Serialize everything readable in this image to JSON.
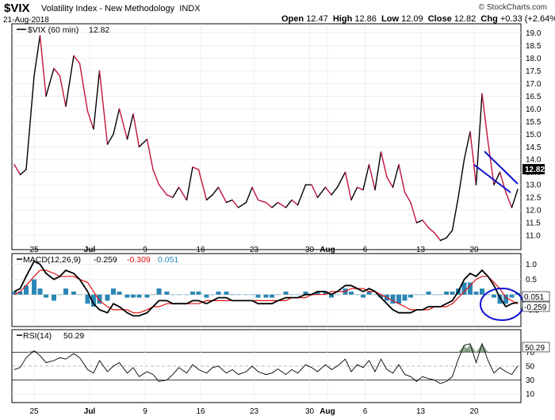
{
  "header": {
    "symbol": "$VIX",
    "name": "Volatility Index - New Methodology",
    "exchange": "INDX",
    "date": "21-Aug-2018",
    "credit": "© StockCharts.com",
    "open_label": "Open",
    "open": "12.47",
    "high_label": "High",
    "high": "12.86",
    "low_label": "Low",
    "low": "12.09",
    "close_label": "Close",
    "close": "12.82",
    "chg_label": "Chg",
    "chg": "+0.33 (+2.64%)"
  },
  "colors": {
    "up": "#000000",
    "down": "#c0143c",
    "macd": "#000000",
    "signal": "#e01010",
    "hist": "#2a86b4",
    "trend": "#1010d0",
    "annot": "#1010d0",
    "rsi": "#000000",
    "overbought": "#6f8f6f"
  },
  "chart_data": [
    {
      "type": "line",
      "title": "$VIX (60 min) 12.82",
      "legend_label": "$VIX (60 min)",
      "legend_value": "12.82",
      "x_ticks": [
        "25",
        "Jul",
        "9",
        "16",
        "23",
        "30",
        "Aug",
        "6",
        "13",
        "20"
      ],
      "y_ticks": [
        "11.0",
        "11.5",
        "12.0",
        "12.5",
        "13.0",
        "13.5",
        "14.0",
        "14.5",
        "15.0",
        "15.5",
        "16.0",
        "16.5",
        "17.0",
        "17.5",
        "18.0",
        "18.5",
        "19.0"
      ],
      "ylim": [
        10.5,
        19.3
      ],
      "last_value_label": "12.82",
      "x": [
        0,
        3,
        6,
        10,
        13,
        16,
        20,
        23,
        26,
        30,
        33,
        37,
        40,
        43,
        47,
        50,
        53,
        57,
        60,
        63,
        67,
        70,
        73,
        77,
        80,
        83,
        87,
        90,
        93,
        97,
        100,
        103,
        107,
        110,
        113,
        117,
        120,
        123,
        127,
        130,
        133,
        137,
        140,
        143,
        147,
        150,
        153,
        157,
        160,
        163,
        167,
        170,
        173,
        176,
        179,
        182,
        185,
        188,
        191,
        194,
        197,
        200,
        203,
        206,
        209,
        212,
        215,
        218,
        221,
        224,
        227,
        230,
        233,
        236,
        239,
        242,
        245,
        248,
        251,
        254
      ],
      "values": [
        13.8,
        13.4,
        13.6,
        17.3,
        18.9,
        16.5,
        17.6,
        17.3,
        16.1,
        18.1,
        17.8,
        15.9,
        15.2,
        17.5,
        14.6,
        15.0,
        16.0,
        14.8,
        15.8,
        14.5,
        14.8,
        13.6,
        13.0,
        12.6,
        12.5,
        12.9,
        12.4,
        13.7,
        13.6,
        12.4,
        12.6,
        12.9,
        12.3,
        12.4,
        12.1,
        12.3,
        12.9,
        12.4,
        12.3,
        12.1,
        12.3,
        12.1,
        12.4,
        12.2,
        13.0,
        13.0,
        12.5,
        12.9,
        12.6,
        12.9,
        13.5,
        12.4,
        12.9,
        12.8,
        13.8,
        12.8,
        14.3,
        13.3,
        12.9,
        13.8,
        12.7,
        12.3,
        11.5,
        11.6,
        11.3,
        11.1,
        10.8,
        10.9,
        11.2,
        12.5,
        14.0,
        15.1,
        13.0,
        16.6,
        14.7,
        13.0,
        13.5,
        12.7,
        12.1,
        12.82
      ],
      "annotations": [
        {
          "type": "falling-wedge",
          "label": "falling wedge"
        }
      ]
    },
    {
      "type": "line",
      "title": "MACD(12,26,9) -0.259, -0.309, 0.051",
      "legend_label": "MACD(12,26,9)",
      "legend_macd": "-0.259",
      "legend_signal": "-0.309",
      "legend_hist": "0.051",
      "y_ticks": [
        "1.0",
        "0.5",
        "-0.5"
      ],
      "ylim": [
        -1.0,
        1.3
      ],
      "value_labels": [
        "0.051",
        "-0.259"
      ],
      "x": [
        0,
        3,
        6,
        10,
        13,
        16,
        20,
        23,
        26,
        30,
        33,
        37,
        40,
        43,
        47,
        50,
        53,
        57,
        60,
        63,
        67,
        70,
        73,
        77,
        80,
        83,
        87,
        90,
        93,
        97,
        100,
        103,
        107,
        110,
        113,
        117,
        120,
        123,
        127,
        130,
        133,
        137,
        140,
        143,
        147,
        150,
        153,
        157,
        160,
        163,
        167,
        170,
        173,
        176,
        179,
        182,
        185,
        188,
        191,
        194,
        197,
        200,
        203,
        206,
        209,
        212,
        215,
        218,
        221,
        224,
        227,
        230,
        233,
        236,
        239,
        242,
        245,
        248,
        251,
        254
      ],
      "series": [
        {
          "name": "MACD",
          "values": [
            0.1,
            0.2,
            0.6,
            1.1,
            1.0,
            0.7,
            0.5,
            0.6,
            0.8,
            0.7,
            0.5,
            0.1,
            -0.3,
            -0.5,
            -0.6,
            -0.3,
            -0.4,
            -0.6,
            -0.7,
            -0.7,
            -0.6,
            -0.4,
            -0.2,
            -0.2,
            -0.3,
            -0.3,
            -0.3,
            -0.2,
            -0.2,
            -0.3,
            -0.2,
            -0.1,
            -0.1,
            -0.2,
            -0.2,
            -0.2,
            -0.2,
            -0.3,
            -0.3,
            -0.3,
            -0.2,
            -0.1,
            -0.1,
            -0.1,
            0.0,
            0.0,
            0.1,
            0.1,
            0.0,
            0.1,
            0.3,
            0.3,
            0.2,
            0.1,
            0.2,
            0.1,
            -0.1,
            -0.3,
            -0.5,
            -0.6,
            -0.6,
            -0.6,
            -0.5,
            -0.5,
            -0.4,
            -0.4,
            -0.4,
            -0.3,
            -0.2,
            0.1,
            0.5,
            0.7,
            0.6,
            0.8,
            0.6,
            0.3,
            -0.1,
            -0.4,
            -0.3,
            -0.259
          ]
        },
        {
          "name": "Signal",
          "values": [
            0.0,
            0.1,
            0.3,
            0.6,
            0.8,
            0.8,
            0.7,
            0.6,
            0.6,
            0.6,
            0.5,
            0.4,
            0.1,
            -0.2,
            -0.4,
            -0.5,
            -0.5,
            -0.5,
            -0.6,
            -0.6,
            -0.5,
            -0.4,
            -0.4,
            -0.3,
            -0.3,
            -0.3,
            -0.3,
            -0.3,
            -0.3,
            -0.2,
            -0.2,
            -0.2,
            -0.2,
            -0.2,
            -0.2,
            -0.2,
            -0.2,
            -0.2,
            -0.2,
            -0.2,
            -0.2,
            -0.2,
            -0.1,
            -0.1,
            -0.1,
            0.0,
            0.0,
            0.0,
            0.1,
            0.1,
            0.1,
            0.2,
            0.2,
            0.2,
            0.1,
            0.1,
            0.0,
            -0.1,
            -0.2,
            -0.3,
            -0.4,
            -0.5,
            -0.5,
            -0.5,
            -0.5,
            -0.4,
            -0.4,
            -0.4,
            -0.3,
            -0.1,
            0.1,
            0.3,
            0.5,
            0.6,
            0.6,
            0.4,
            0.2,
            -0.1,
            -0.2,
            -0.309
          ]
        },
        {
          "name": "Histogram",
          "values": [
            0.1,
            0.1,
            0.3,
            0.5,
            0.2,
            -0.1,
            -0.2,
            0.0,
            0.2,
            0.1,
            0.0,
            -0.3,
            -0.4,
            -0.3,
            -0.2,
            0.2,
            0.1,
            -0.1,
            -0.1,
            -0.1,
            -0.1,
            0.0,
            0.2,
            0.1,
            0.0,
            0.0,
            0.0,
            0.1,
            0.1,
            -0.1,
            0.0,
            0.1,
            0.1,
            0.0,
            0.0,
            0.0,
            0.0,
            -0.1,
            -0.1,
            -0.1,
            0.0,
            0.1,
            0.0,
            0.0,
            0.1,
            0.0,
            0.1,
            0.1,
            -0.1,
            0.0,
            0.2,
            0.1,
            0.0,
            -0.1,
            0.1,
            0.0,
            -0.1,
            -0.2,
            -0.3,
            -0.3,
            -0.2,
            -0.1,
            0.0,
            0.0,
            0.1,
            0.0,
            0.0,
            0.1,
            0.1,
            0.2,
            0.4,
            0.4,
            0.1,
            0.2,
            0.0,
            -0.1,
            -0.3,
            -0.3,
            -0.1,
            0.051
          ]
        }
      ],
      "annotations": [
        {
          "type": "ellipse",
          "label": "circle highlight"
        }
      ]
    },
    {
      "type": "line",
      "title": "RSI(14) 50.29",
      "legend_label": "RSI(14)",
      "legend_value": "50.29",
      "y_ticks": [
        "70",
        "50",
        "30",
        "10"
      ],
      "ylim": [
        0,
        100
      ],
      "value_label": "50.29",
      "x": [
        0,
        3,
        6,
        10,
        13,
        16,
        20,
        23,
        26,
        30,
        33,
        37,
        40,
        43,
        47,
        50,
        53,
        57,
        60,
        63,
        67,
        70,
        73,
        77,
        80,
        83,
        87,
        90,
        93,
        97,
        100,
        103,
        107,
        110,
        113,
        117,
        120,
        123,
        127,
        130,
        133,
        137,
        140,
        143,
        147,
        150,
        153,
        157,
        160,
        163,
        167,
        170,
        173,
        176,
        179,
        182,
        185,
        188,
        191,
        194,
        197,
        200,
        203,
        206,
        209,
        212,
        215,
        218,
        221,
        224,
        227,
        230,
        233,
        236,
        239,
        242,
        245,
        248,
        251,
        254
      ],
      "values": [
        45,
        48,
        62,
        72,
        65,
        55,
        58,
        62,
        60,
        68,
        62,
        45,
        40,
        58,
        42,
        50,
        55,
        40,
        48,
        35,
        42,
        38,
        28,
        30,
        38,
        48,
        40,
        52,
        45,
        40,
        48,
        50,
        40,
        45,
        38,
        42,
        50,
        42,
        38,
        40,
        46,
        38,
        45,
        40,
        52,
        48,
        42,
        52,
        45,
        50,
        60,
        42,
        52,
        48,
        58,
        42,
        60,
        45,
        40,
        52,
        38,
        35,
        28,
        35,
        32,
        30,
        25,
        28,
        35,
        60,
        80,
        82,
        55,
        82,
        58,
        40,
        48,
        42,
        38,
        50.29
      ]
    }
  ]
}
